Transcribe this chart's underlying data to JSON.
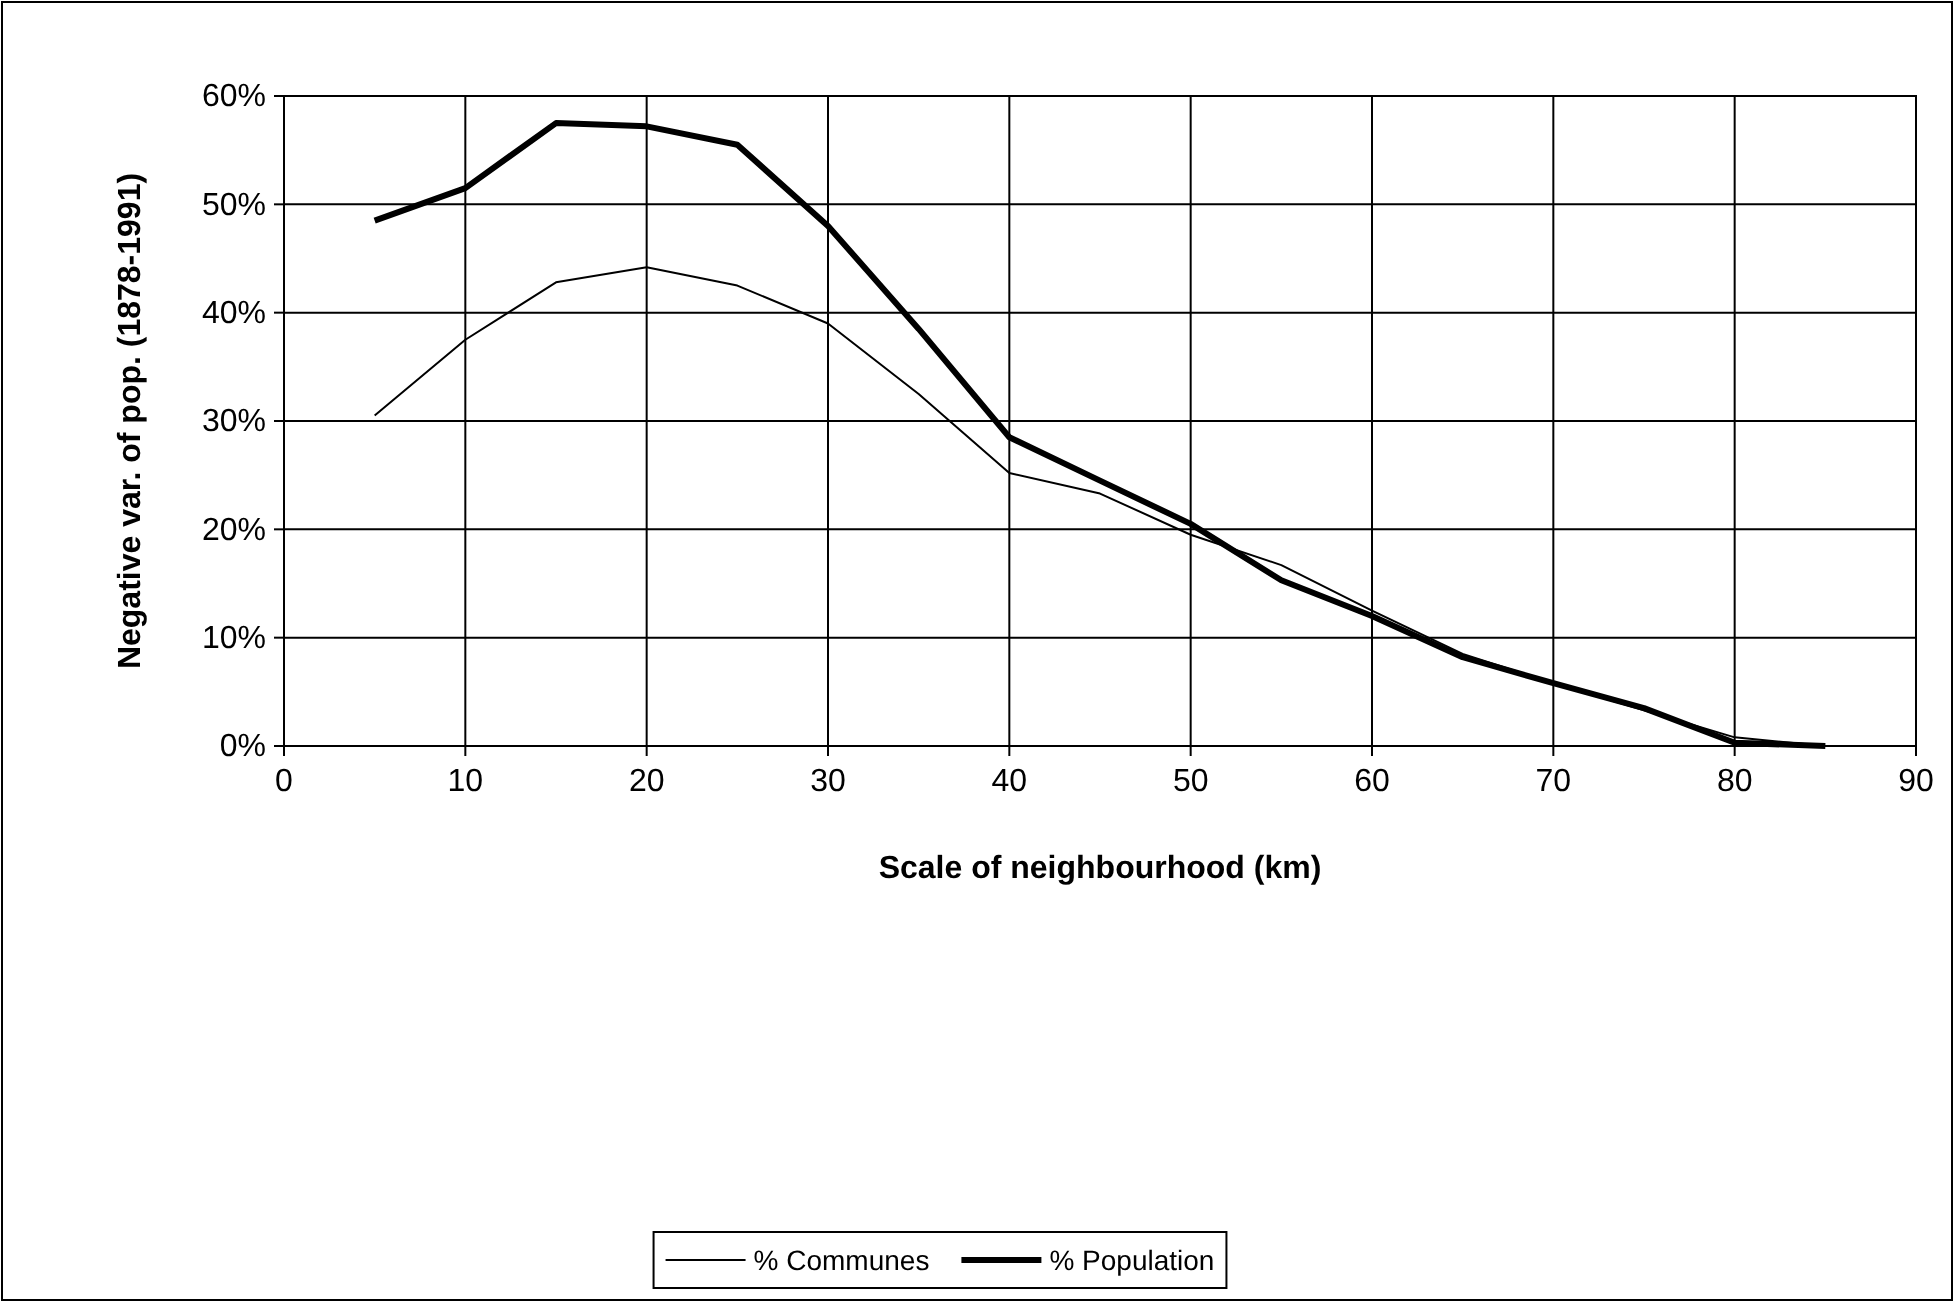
{
  "chart_data": {
    "type": "line",
    "xlabel": "Scale of neighbourhood (km)",
    "ylabel": "Negative var. of pop. (1878-1991)",
    "xlim": [
      0,
      90
    ],
    "xticks": [
      0,
      10,
      20,
      30,
      40,
      50,
      60,
      70,
      80,
      90
    ],
    "ylim": [
      0,
      60
    ],
    "yticks": [
      {
        "value": 0,
        "label": "0%"
      },
      {
        "value": 10,
        "label": "10%"
      },
      {
        "value": 20,
        "label": "20%"
      },
      {
        "value": 30,
        "label": "30%"
      },
      {
        "value": 40,
        "label": "40%"
      },
      {
        "value": 50,
        "label": "50%"
      },
      {
        "value": 60,
        "label": "60%"
      }
    ],
    "x": [
      5,
      10,
      15,
      20,
      25,
      30,
      35,
      40,
      45,
      50,
      55,
      60,
      65,
      70,
      75,
      80,
      85
    ],
    "series": [
      {
        "name": "% Communes",
        "color": "#000000",
        "values": [
          30.5,
          37.5,
          42.8,
          44.2,
          42.5,
          39,
          32.5,
          25.2,
          23.3,
          19.5,
          16.7,
          12.5,
          8.5,
          5.8,
          3.3,
          0.8,
          0
        ]
      },
      {
        "name": "% Population",
        "color": "#000000",
        "values": [
          48.5,
          51.5,
          57.5,
          57.2,
          55.5,
          48,
          38.5,
          28.5,
          24.5,
          20.5,
          15.3,
          12,
          8.2,
          5.8,
          3.5,
          0.3,
          0
        ]
      }
    ],
    "grid": true,
    "legend": "bottom",
    "marker": "none",
    "line_style": "solid"
  }
}
